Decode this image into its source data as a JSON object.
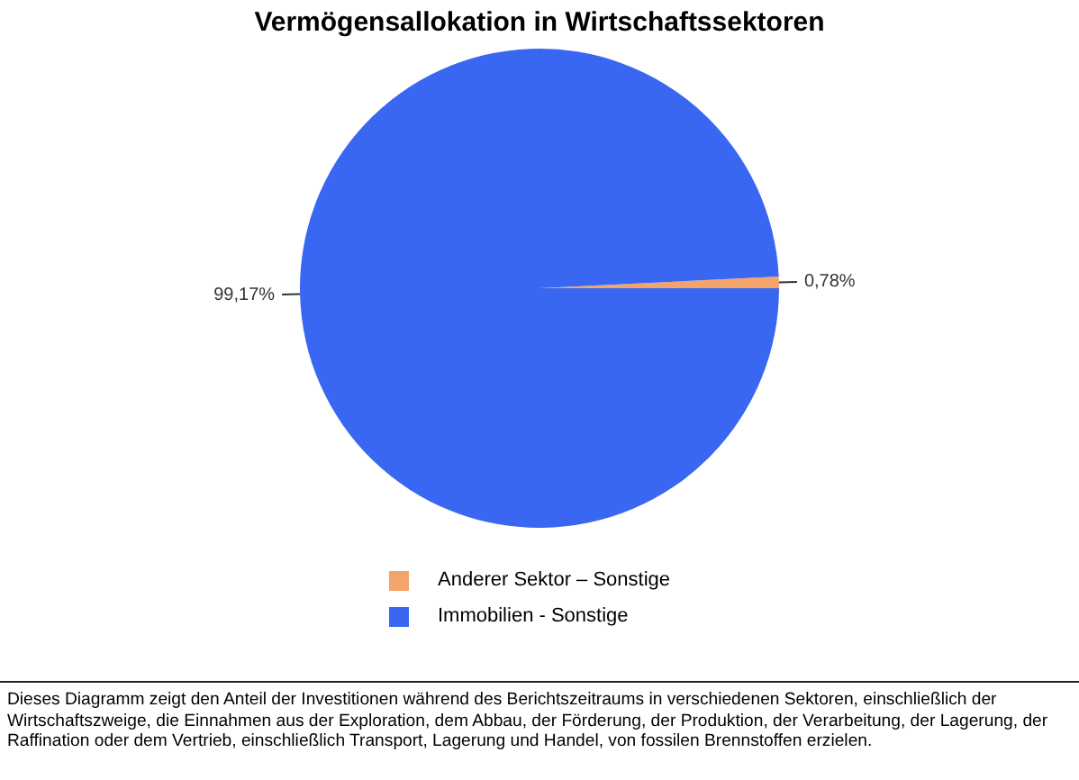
{
  "chart_data": {
    "type": "pie",
    "title": "Vermögensallokation in Wirtschaftssektoren",
    "categories": [
      "Anderer Sektor – Sonstige",
      "Immobilien - Sonstige"
    ],
    "values": [
      0.78,
      99.17
    ],
    "value_labels": [
      "0,78%",
      "99,17%"
    ],
    "colors": [
      "#f4a46a",
      "#3a67f2"
    ],
    "legend": "bottom",
    "annotations": [
      "Dieses Diagramm zeigt den Anteil der Investitionen während des Berichtszeitraums in verschiedenen Sektoren, einschließlich der Wirtschaftszweige, die Einnahmen aus der Exploration, dem Abbau, der Förderung, der Produktion, der Verarbeitung, der Lagerung, der Raffination oder dem Vertrieb, einschließlich Transport, Lagerung und Handel, von fossilen Brennstoffen erzielen."
    ]
  }
}
